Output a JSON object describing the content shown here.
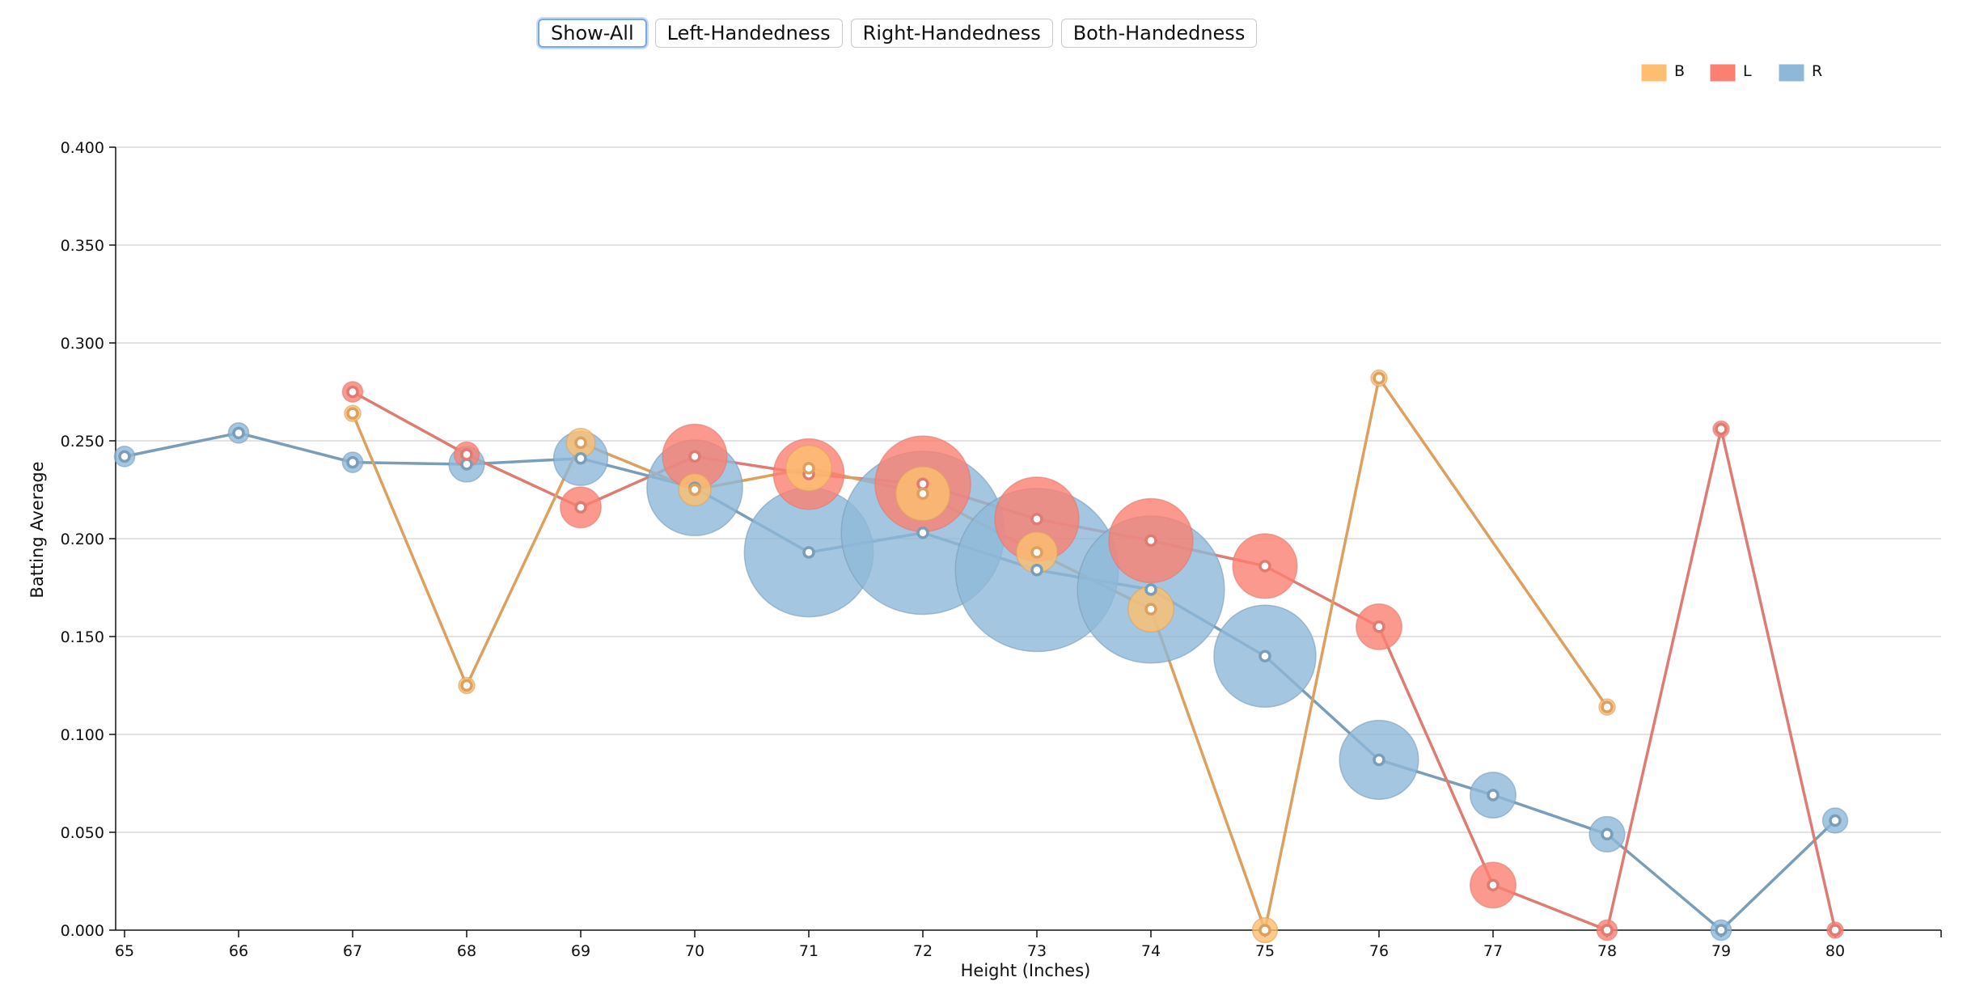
{
  "toolbar": {
    "buttons": [
      {
        "label": "Show-All",
        "active": true
      },
      {
        "label": "Left-Handedness",
        "active": false
      },
      {
        "label": "Right-Handedness",
        "active": false
      },
      {
        "label": "Both-Handedness",
        "active": false
      }
    ]
  },
  "chart_data": {
    "type": "scatter",
    "title": "",
    "xlabel": "Height (Inches)",
    "ylabel": "Batting Average",
    "xlim": [
      65,
      80
    ],
    "ylim": [
      0,
      0.4
    ],
    "x_ticks": [
      "65",
      "66",
      "67",
      "68",
      "69",
      "70",
      "71",
      "72",
      "73",
      "74",
      "75",
      "76",
      "77",
      "78",
      "79",
      "80"
    ],
    "y_ticks": [
      "0.000",
      "0.050",
      "0.100",
      "0.150",
      "0.200",
      "0.250",
      "0.300",
      "0.350",
      "0.400"
    ],
    "grid": true,
    "legend_position": "top-right",
    "legend": [
      {
        "label": "B",
        "color": "#fdbf6f"
      },
      {
        "label": "L",
        "color": "#fb8072"
      },
      {
        "label": "R",
        "color": "#8fb8d8"
      }
    ],
    "series": [
      {
        "name": "R",
        "color": "#8fb8d8",
        "line_color": "#7a9db8",
        "points": [
          {
            "x": 65,
            "y": 0.242,
            "size": 1
          },
          {
            "x": 66,
            "y": 0.254,
            "size": 1
          },
          {
            "x": 67,
            "y": 0.239,
            "size": 1
          },
          {
            "x": 68,
            "y": 0.238,
            "size": 3
          },
          {
            "x": 69,
            "y": 0.241,
            "size": 7
          },
          {
            "x": 70,
            "y": 0.226,
            "size": 22
          },
          {
            "x": 71,
            "y": 0.193,
            "size": 40
          },
          {
            "x": 72,
            "y": 0.203,
            "size": 64
          },
          {
            "x": 73,
            "y": 0.184,
            "size": 64
          },
          {
            "x": 74,
            "y": 0.174,
            "size": 52
          },
          {
            "x": 75,
            "y": 0.14,
            "size": 25
          },
          {
            "x": 76,
            "y": 0.087,
            "size": 15
          },
          {
            "x": 77,
            "y": 0.069,
            "size": 5
          },
          {
            "x": 78,
            "y": 0.049,
            "size": 3
          },
          {
            "x": 79,
            "y": 0.0,
            "size": 1
          },
          {
            "x": 80,
            "y": 0.056,
            "size": 1.5
          }
        ]
      },
      {
        "name": "L",
        "color": "#fb8072",
        "line_color": "#de7c73",
        "points": [
          {
            "x": 67,
            "y": 0.275,
            "size": 1
          },
          {
            "x": 68,
            "y": 0.243,
            "size": 1.5
          },
          {
            "x": 69,
            "y": 0.216,
            "size": 4
          },
          {
            "x": 70,
            "y": 0.242,
            "size": 10
          },
          {
            "x": 71,
            "y": 0.233,
            "size": 12
          },
          {
            "x": 72,
            "y": 0.228,
            "size": 22
          },
          {
            "x": 73,
            "y": 0.21,
            "size": 17
          },
          {
            "x": 74,
            "y": 0.199,
            "size": 17
          },
          {
            "x": 75,
            "y": 0.186,
            "size": 10
          },
          {
            "x": 76,
            "y": 0.155,
            "size": 5
          },
          {
            "x": 77,
            "y": 0.023,
            "size": 5
          },
          {
            "x": 78,
            "y": 0.0,
            "size": 1
          },
          {
            "x": 79,
            "y": 0.256,
            "size": 0.6
          },
          {
            "x": 80,
            "y": 0.0,
            "size": 0.6
          }
        ]
      },
      {
        "name": "B",
        "color": "#fdbf6f",
        "line_color": "#dca15f",
        "points": [
          {
            "x": 67,
            "y": 0.264,
            "size": 0.6
          },
          {
            "x": 68,
            "y": 0.125,
            "size": 0.6
          },
          {
            "x": 69,
            "y": 0.249,
            "size": 2
          },
          {
            "x": 70,
            "y": 0.225,
            "size": 2.5
          },
          {
            "x": 71,
            "y": 0.236,
            "size": 5
          },
          {
            "x": 72,
            "y": 0.223,
            "size": 7
          },
          {
            "x": 73,
            "y": 0.193,
            "size": 4
          },
          {
            "x": 74,
            "y": 0.164,
            "size": 5
          },
          {
            "x": 75,
            "y": 0.0,
            "size": 1.5
          },
          {
            "x": 76,
            "y": 0.282,
            "size": 0.6
          },
          {
            "x": 78,
            "y": 0.114,
            "size": 0.6
          }
        ]
      }
    ]
  }
}
